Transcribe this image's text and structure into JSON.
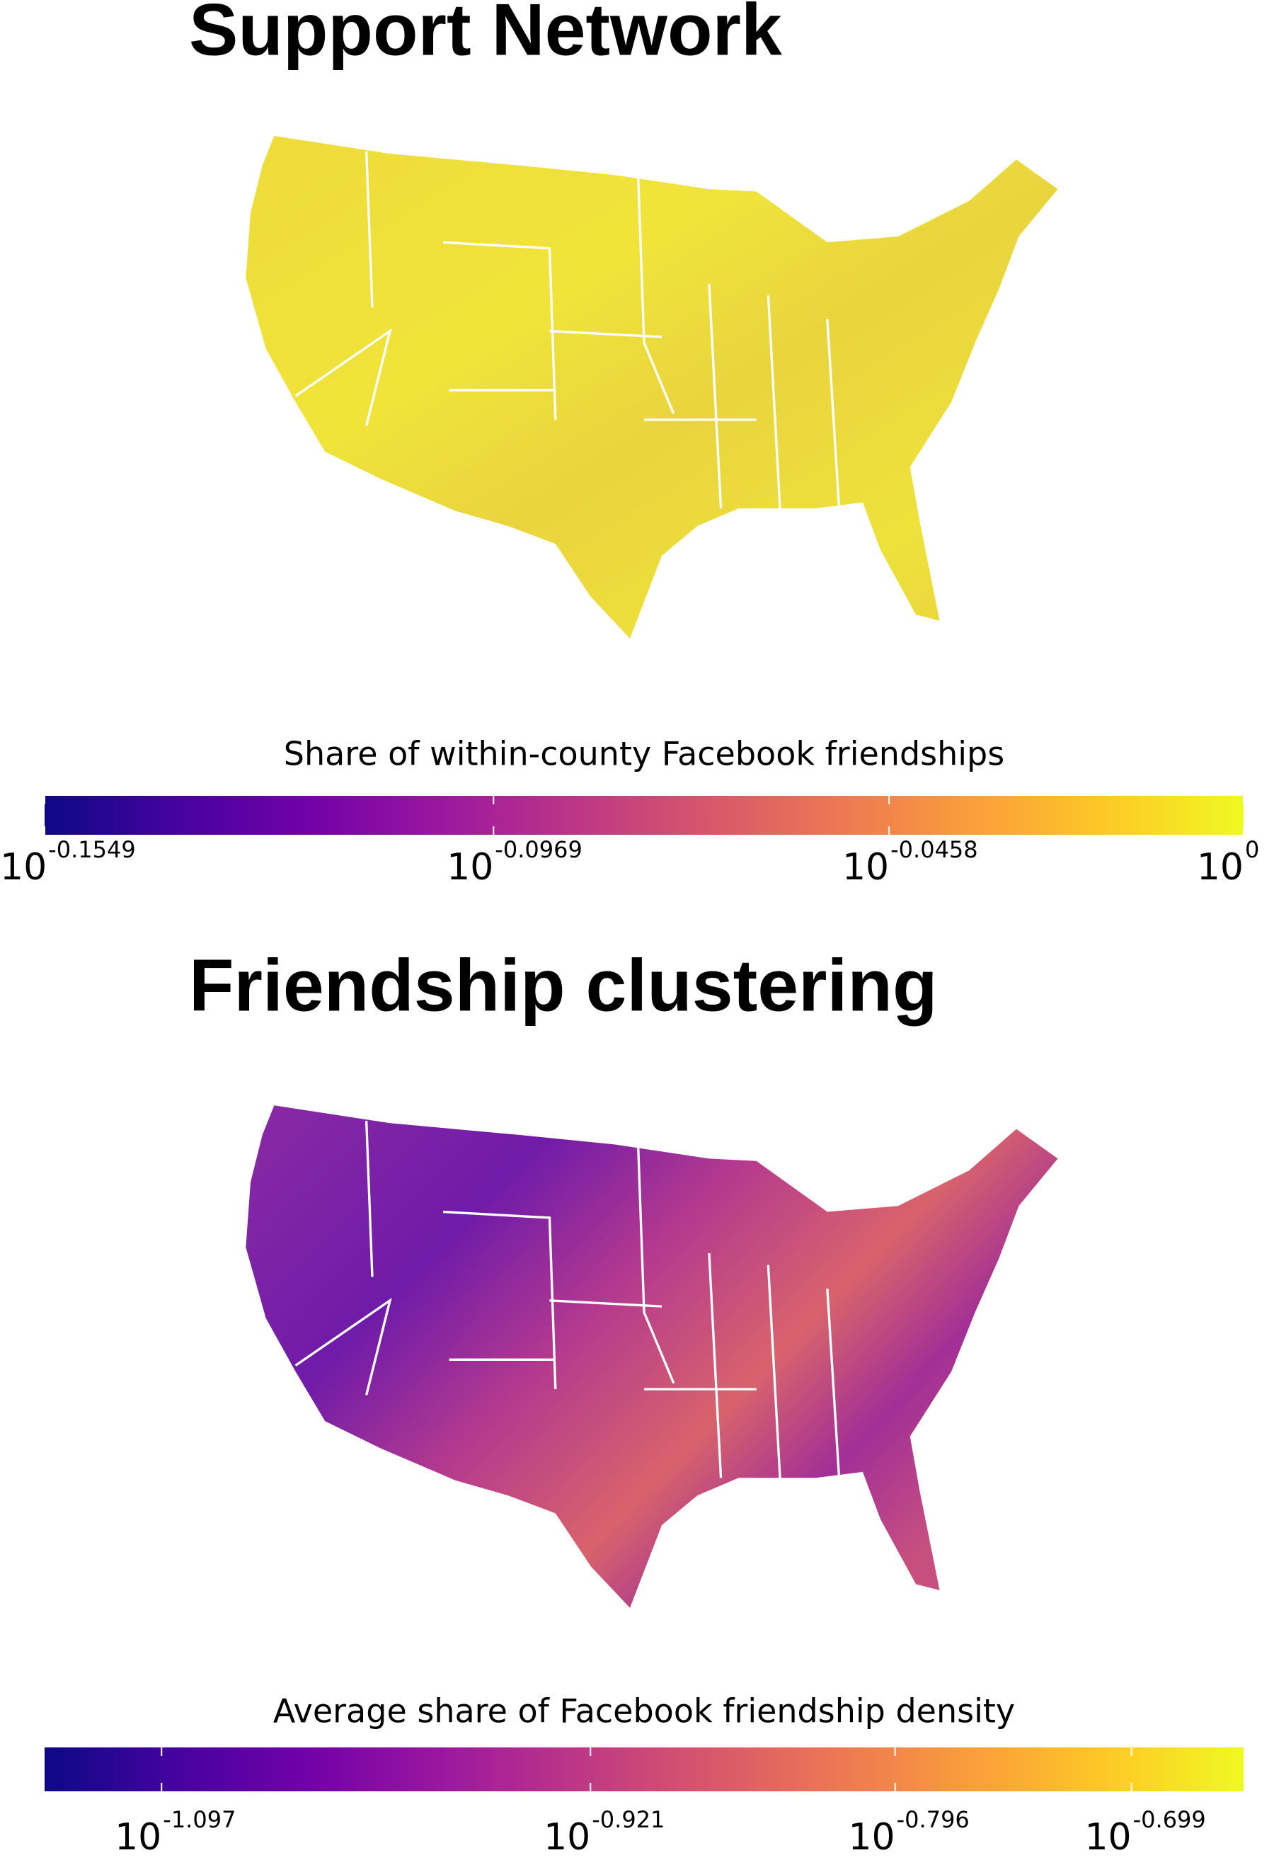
{
  "panels": [
    {
      "title": "Support Network",
      "colorbar": {
        "label": "Share of within-county Facebook friendships",
        "log_base": 10,
        "lim": [
          -0.1549,
          0
        ],
        "ticks": [
          -0.1549,
          -0.0969,
          -0.0458,
          0
        ]
      }
    },
    {
      "title": "Friendship clustering",
      "colorbar": {
        "label": "Average share of Facebook friendship density",
        "log_base": 10,
        "lim": [
          -1.145,
          -0.653
        ],
        "ticks": [
          -1.097,
          -0.921,
          -0.796,
          -0.699
        ]
      }
    }
  ],
  "colormap": [
    "#0d0887",
    "#46039f",
    "#7201a8",
    "#9c179e",
    "#bd3786",
    "#d8576b",
    "#ed7953",
    "#fb9f3a",
    "#fdca26",
    "#f0f921"
  ]
}
